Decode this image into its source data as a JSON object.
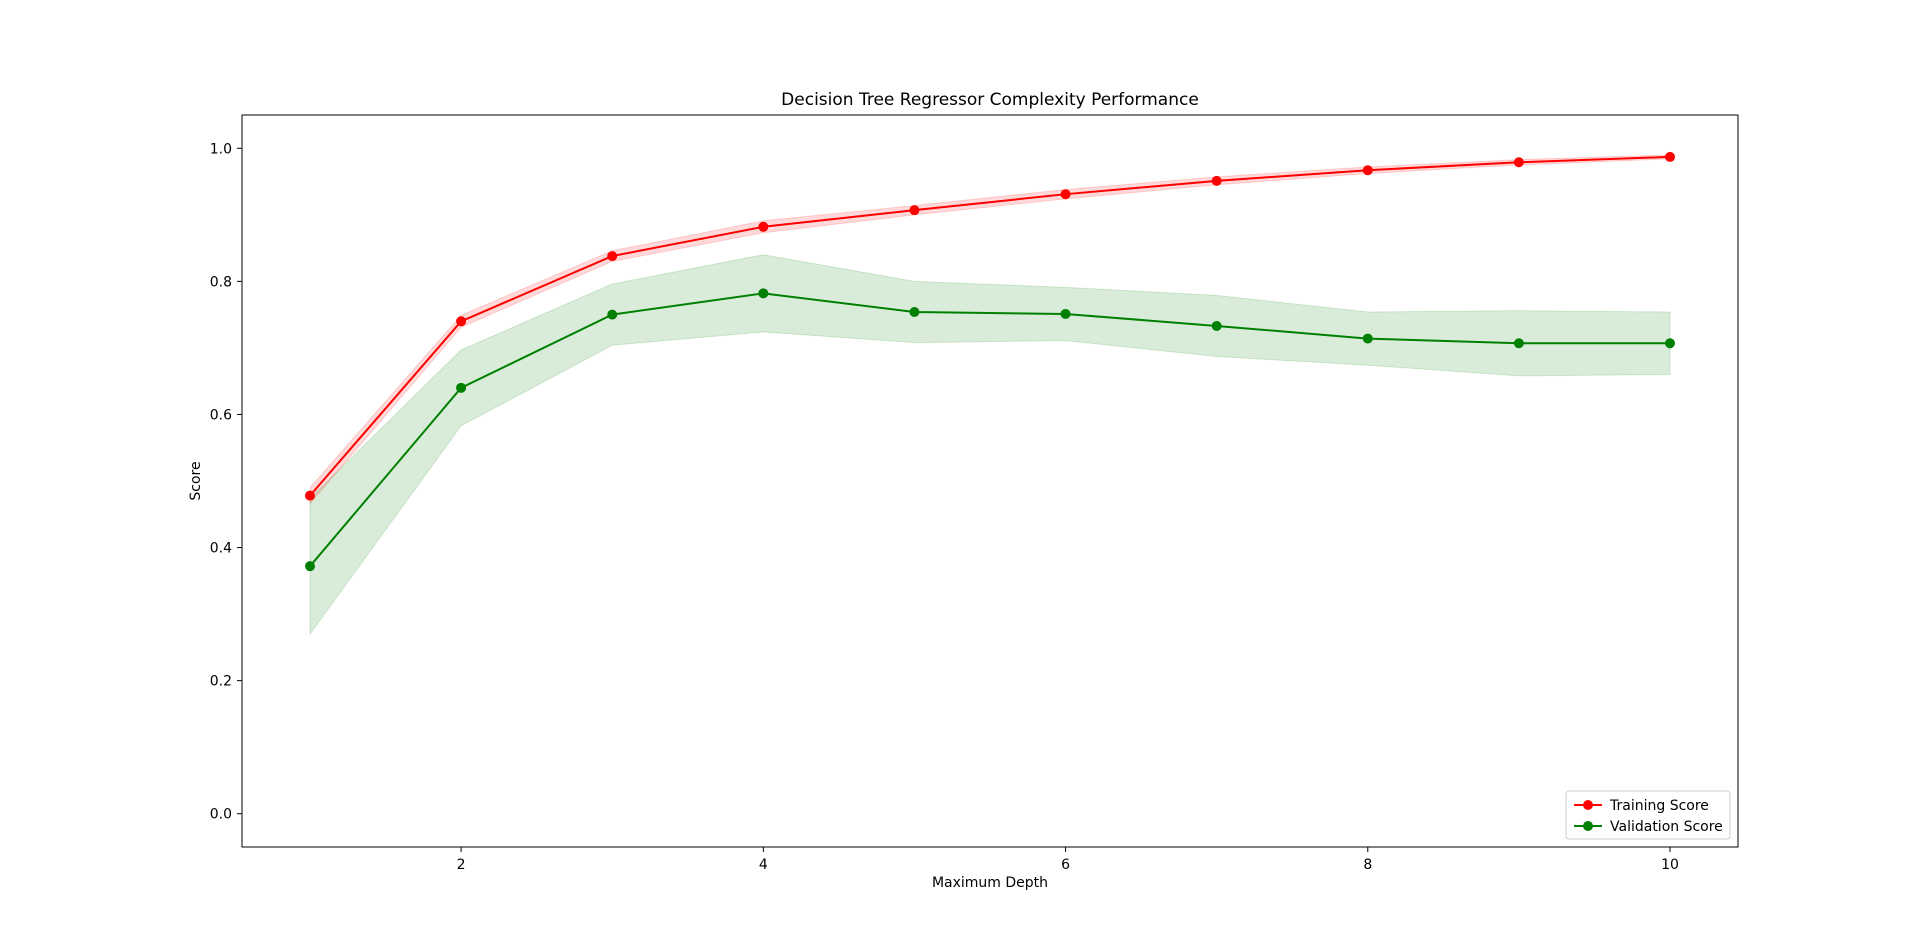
{
  "chart_data": {
    "type": "line",
    "title": "Decision Tree Regressor Complexity Performance",
    "xlabel": "Maximum Depth",
    "ylabel": "Score",
    "xlim": [
      0.55,
      10.45
    ],
    "ylim": [
      -0.05,
      1.05
    ],
    "xticks": [
      2,
      4,
      6,
      8,
      10
    ],
    "xtick_labels": [
      "2",
      "4",
      "6",
      "8",
      "10"
    ],
    "yticks": [
      0.0,
      0.2,
      0.4,
      0.6,
      0.8,
      1.0
    ],
    "ytick_labels": [
      "0.0",
      "0.2",
      "0.4",
      "0.6",
      "0.8",
      "1.0"
    ],
    "grid": false,
    "legend_position": "bottom-right",
    "x": [
      1,
      2,
      3,
      4,
      5,
      6,
      7,
      8,
      9,
      10
    ],
    "series": [
      {
        "name": "Training Score",
        "color": "#ff0000",
        "band_color": "#ff0000",
        "values": [
          0.478,
          0.74,
          0.838,
          0.882,
          0.907,
          0.931,
          0.951,
          0.967,
          0.979,
          0.987
        ],
        "band_lower": [
          0.466,
          0.731,
          0.83,
          0.873,
          0.9,
          0.924,
          0.945,
          0.962,
          0.975,
          0.984
        ],
        "band_upper": [
          0.49,
          0.749,
          0.846,
          0.891,
          0.914,
          0.938,
          0.957,
          0.972,
          0.983,
          0.99
        ]
      },
      {
        "name": "Validation Score",
        "color": "#008000",
        "band_color": "#008000",
        "values": [
          0.372,
          0.64,
          0.75,
          0.782,
          0.754,
          0.751,
          0.733,
          0.714,
          0.707,
          0.707
        ],
        "band_lower": [
          0.27,
          0.583,
          0.704,
          0.724,
          0.708,
          0.711,
          0.687,
          0.674,
          0.658,
          0.66
        ],
        "band_upper": [
          0.474,
          0.697,
          0.796,
          0.84,
          0.8,
          0.791,
          0.779,
          0.754,
          0.756,
          0.754
        ]
      }
    ]
  }
}
